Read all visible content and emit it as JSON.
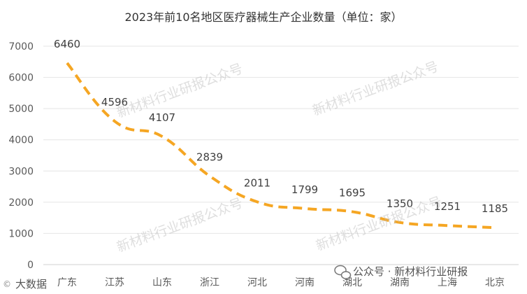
{
  "chart_data": {
    "type": "line",
    "title": "2023年前10名地区医疗器械生产企业数量（单位：家）",
    "categories": [
      "广东",
      "江苏",
      "山东",
      "浙江",
      "河北",
      "河南",
      "湖北",
      "湖南",
      "上海",
      "北京"
    ],
    "series": [
      {
        "values": [
          6460,
          4596,
          4107,
          2839,
          2011,
          1799,
          1695,
          1350,
          1251,
          1185
        ]
      }
    ],
    "data_labels": [
      "6460",
      "4596",
      "4107",
      "2839",
      "2011",
      "1799",
      "1695",
      "1350",
      "1251",
      "1185"
    ],
    "y_ticks": [
      "0",
      "1000",
      "2000",
      "3000",
      "4000",
      "5000",
      "6000",
      "7000"
    ],
    "ylim": [
      0,
      7000
    ],
    "grid": true,
    "line_style": "dashed, smooth",
    "line_color": "#F5A623"
  },
  "watermarks": [
    "新材料行业研报公众号",
    "新材料行业研报公众号",
    "新材料行业研报公众号",
    "新材料行业研报公众号"
  ],
  "footer": {
    "account": "公众号 · 新材料行业研报",
    "corner_badge": "大数据"
  }
}
